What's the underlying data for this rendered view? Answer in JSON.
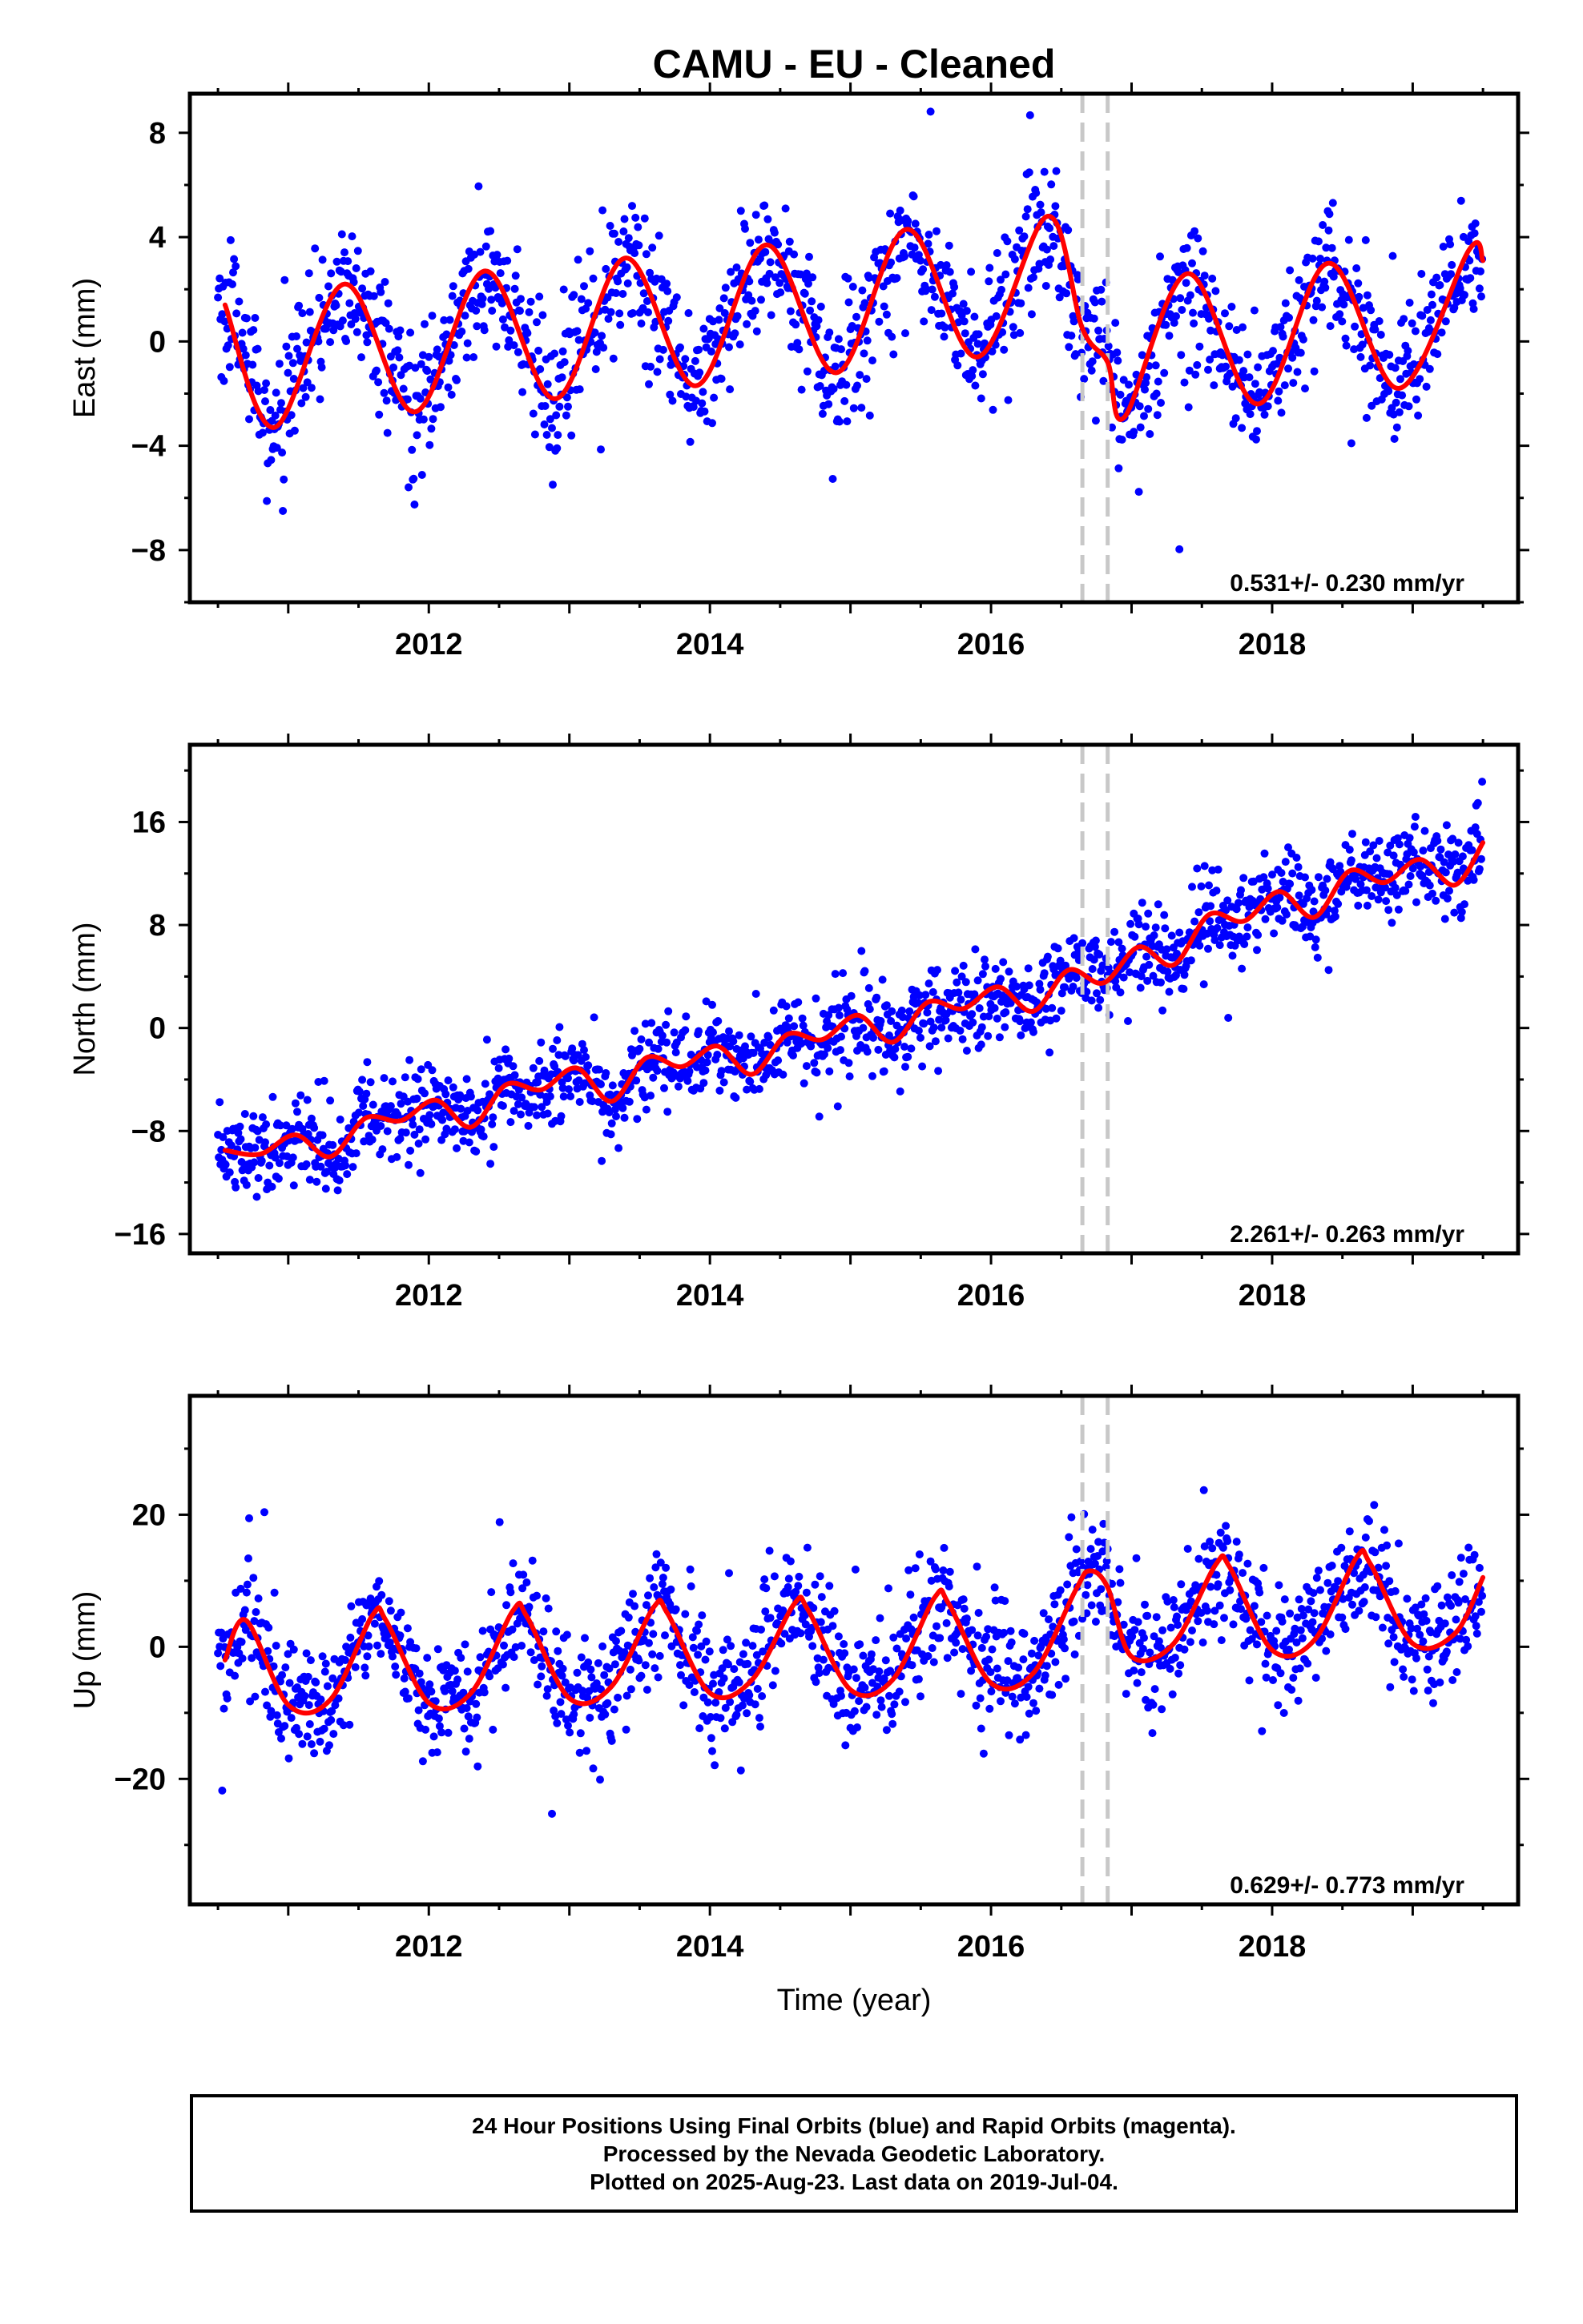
{
  "figure": {
    "title": "CAMU  - EU - Cleaned",
    "x_axis_label": "Time (year)"
  },
  "footer": {
    "lines": [
      "24 Hour Positions Using Final Orbits (blue) and Rapid Orbits (magenta).",
      "Processed by the Nevada Geodetic Laboratory.",
      "Plotted on 2025-Aug-23. Last data on 2019-Jul-04."
    ]
  },
  "colors": {
    "final_orbits": "#0000ff",
    "fit_line": "#ff0000",
    "event_lines": "#c8c8c8",
    "axes": "#000000"
  },
  "chart_data": [
    {
      "type": "scatter",
      "ylabel": "East (mm)",
      "rate_label": "0.531+/- 0.230 mm/yr",
      "xlim": [
        2010.3,
        2019.75
      ],
      "ylim": [
        -10,
        9.5
      ],
      "x_ticks": [
        2012,
        2014,
        2016,
        2018
      ],
      "y_ticks": [
        -8,
        -4,
        0,
        4,
        8
      ],
      "event_lines_x": [
        2016.65,
        2016.83
      ],
      "series": [
        {
          "marker": "dots",
          "x_start": 2010.5,
          "x_end": 2019.5,
          "trend_rate": 0.531,
          "annual_amplitude": 3.2,
          "annual_peak": 0.4,
          "scatter_sd": 1.3,
          "offsets": [
            {
              "x": 2016.83,
              "dy": -3.2
            }
          ]
        },
        {
          "marker": "line",
          "x": [
            2010.55,
            2010.9,
            2011.4,
            2011.9,
            2012.4,
            2012.9,
            2013.4,
            2013.9,
            2014.4,
            2014.9,
            2015.4,
            2015.9,
            2016.4,
            2016.65,
            2016.83,
            2016.95,
            2017.4,
            2017.9,
            2018.4,
            2018.9,
            2019.4,
            2019.5
          ],
          "y": [
            1.4,
            -3.3,
            2.2,
            -2.7,
            2.7,
            -2.2,
            3.2,
            -1.7,
            3.7,
            -1.2,
            4.3,
            -0.6,
            4.8,
            0.5,
            -0.8,
            -2.9,
            2.6,
            -2.4,
            3.0,
            -1.8,
            3.5,
            3.1
          ]
        }
      ]
    },
    {
      "type": "scatter",
      "ylabel": "North (mm)",
      "rate_label": "2.261+/- 0.263 mm/yr",
      "xlim": [
        2010.3,
        2019.75
      ],
      "ylim": [
        -17.5,
        22
      ],
      "x_ticks": [
        2012,
        2014,
        2016,
        2018
      ],
      "y_ticks": [
        -16,
        -8,
        0,
        8,
        16
      ],
      "event_lines_x": [
        2016.65,
        2016.83
      ],
      "series": [
        {
          "marker": "dots",
          "x_start": 2010.5,
          "x_end": 2019.5,
          "trend_rate": 2.261,
          "annual_amplitude": 1.3,
          "annual_peak": 0.55,
          "scatter_sd": 1.6,
          "offsets": [
            {
              "x": 2018.5,
              "dy": 2.5
            }
          ]
        },
        {
          "marker": "line",
          "x": [
            2010.55,
            2010.8,
            2011.05,
            2011.3,
            2011.55,
            2011.8,
            2012.05,
            2012.3,
            2012.55,
            2012.8,
            2013.05,
            2013.3,
            2013.55,
            2013.8,
            2014.05,
            2014.3,
            2014.55,
            2014.8,
            2015.05,
            2015.3,
            2015.55,
            2015.8,
            2016.05,
            2016.3,
            2016.55,
            2016.8,
            2017.05,
            2017.3,
            2017.55,
            2017.8,
            2018.05,
            2018.3,
            2018.55,
            2018.8,
            2019.05,
            2019.3,
            2019.5
          ],
          "y": [
            -9.5,
            -9.8,
            -8.3,
            -10.0,
            -7.0,
            -7.2,
            -5.6,
            -7.7,
            -4.4,
            -4.8,
            -3.1,
            -5.7,
            -2.3,
            -3.0,
            -1.4,
            -3.6,
            -0.5,
            -0.9,
            1.0,
            -1.1,
            2.0,
            1.5,
            3.2,
            1.3,
            4.5,
            3.5,
            6.3,
            4.9,
            8.8,
            8.3,
            10.6,
            8.6,
            12.2,
            11.3,
            13.1,
            11.1,
            14.4
          ]
        }
      ]
    },
    {
      "type": "scatter",
      "ylabel": "Up (mm)",
      "rate_label": "0.629+/- 0.773 mm/yr",
      "xlim": [
        2010.3,
        2019.75
      ],
      "ylim": [
        -39,
        38
      ],
      "x_ticks": [
        2012,
        2014,
        2016,
        2018
      ],
      "y_ticks": [
        -20,
        0,
        20
      ],
      "event_lines_x": [
        2016.65,
        2016.83
      ],
      "series": [
        {
          "marker": "dots",
          "x_start": 2010.5,
          "x_end": 2019.5,
          "trend_rate": 0.629,
          "annual_amplitude": 7.0,
          "annual_peak": 0.62,
          "scatter_sd": 4.5,
          "offsets": []
        },
        {
          "marker": "line",
          "x": [
            2010.55,
            2010.7,
            2011.0,
            2011.3,
            2011.6,
            2011.7,
            2012.0,
            2012.3,
            2012.6,
            2012.7,
            2013.0,
            2013.3,
            2013.6,
            2013.7,
            2014.0,
            2014.3,
            2014.6,
            2014.7,
            2015.0,
            2015.3,
            2015.6,
            2015.7,
            2016.0,
            2016.3,
            2016.6,
            2016.7,
            2016.83,
            2017.0,
            2017.3,
            2017.6,
            2017.7,
            2018.0,
            2018.3,
            2018.6,
            2018.7,
            2019.0,
            2019.3,
            2019.5
          ],
          "y": [
            -2.0,
            4.0,
            -8.8,
            -8.0,
            4.8,
            3.8,
            -8.5,
            -7.0,
            5.5,
            4.5,
            -7.8,
            -6.0,
            6.0,
            5.0,
            -7.0,
            -5.0,
            6.5,
            5.5,
            -6.5,
            -5.0,
            7.5,
            6.5,
            -5.5,
            -4.0,
            8.5,
            11.5,
            9.0,
            -1.5,
            0.5,
            12.5,
            12.0,
            -0.5,
            1.0,
            13.5,
            12.5,
            0.5,
            2.0,
            10.5
          ]
        }
      ]
    }
  ]
}
